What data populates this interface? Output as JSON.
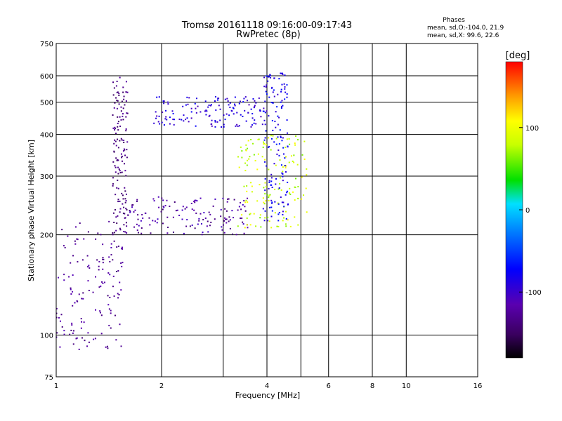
{
  "chart_data": {
    "type": "scatter",
    "title": "Tromsø 20161118 09:16:00-09:17:43",
    "subtitle": "RwPretec (8p)",
    "xlabel": "Frequency [MHz]",
    "ylabel": "Stationary phase Virtual Height [km]",
    "xscale": "log",
    "yscale": "log",
    "xlim": [
      1,
      16
    ],
    "ylim": [
      75,
      750
    ],
    "xticks": [
      1,
      2,
      4,
      6,
      8,
      10,
      16
    ],
    "xtick_labels": [
      "1",
      "2",
      "4",
      "6",
      "8",
      "10",
      "16"
    ],
    "yticks": [
      75,
      100,
      200,
      300,
      400,
      500,
      600,
      750
    ],
    "ytick_labels": [
      "75",
      "100",
      "200",
      "300",
      "400",
      "500",
      "600",
      "750"
    ],
    "grid": true,
    "phases": {
      "title": "Phases",
      "line_o": "mean, sd,O:-104.0, 21.9",
      "line_x": "mean, sd,X:  99.6, 22.6"
    },
    "colorbar": {
      "label": "[deg]",
      "range": [
        -180,
        180
      ],
      "ticks": [
        100,
        0,
        -100
      ],
      "tick_labels": [
        "100",
        "0",
        "-100"
      ],
      "colormap": "rainbow (black-purple-blue-cyan-green-yellow-orange-red)"
    },
    "series": [
      {
        "trace": "low trace below 1.5 MHz",
        "x_range": [
          1.0,
          1.55
        ],
        "y_range": [
          90,
          220
        ],
        "phase_range": [
          -140,
          -110
        ]
      },
      {
        "trace": "vertical trace near 1.5 MHz",
        "x_range": [
          1.45,
          1.6
        ],
        "y_range": [
          200,
          600
        ],
        "phase_range": [
          -150,
          -120
        ]
      },
      {
        "trace": "O-mode trace",
        "x_range": [
          1.6,
          3.6
        ],
        "y_range": [
          200,
          260
        ],
        "phase_range": [
          -140,
          -100
        ]
      },
      {
        "trace": "X-mode trace",
        "x_range": [
          3.3,
          5.2
        ],
        "y_range": [
          210,
          400
        ],
        "phase_range": [
          60,
          110
        ]
      },
      {
        "trace": "upper trace",
        "x_range": [
          1.9,
          4.0
        ],
        "y_range": [
          420,
          520
        ],
        "phase_range": [
          -110,
          -70
        ]
      },
      {
        "trace": "vertical trace near 4.2 MHz",
        "x_range": [
          3.9,
          4.6
        ],
        "y_range": [
          220,
          620
        ],
        "phase_range": [
          -100,
          -60
        ]
      }
    ]
  }
}
